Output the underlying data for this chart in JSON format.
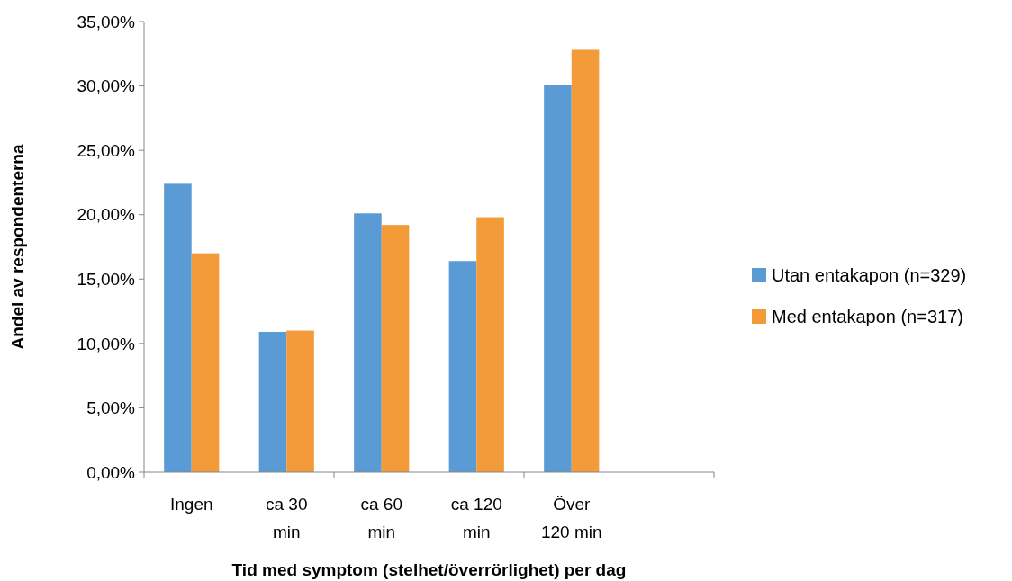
{
  "chart_data": {
    "type": "bar",
    "xlabel": "Tid med symptom (stelhet/överrörlighet) per dag",
    "ylabel": "Andel av respondenterna",
    "categories": [
      "Ingen",
      "ca 30 min",
      "ca 60 min",
      "ca 120 min",
      "Över 120 min",
      null
    ],
    "series": [
      {
        "name": "Utan entakapon (n=329)",
        "color": "#5b9bd5",
        "values": [
          22.4,
          10.9,
          20.1,
          16.4,
          30.1,
          null
        ]
      },
      {
        "name": "Med entakapon (n=317)",
        "color": "#f29b38",
        "values": [
          17.0,
          11.0,
          19.2,
          19.8,
          32.8,
          null
        ]
      }
    ],
    "ylim": [
      0,
      35
    ],
    "yticks": [
      {
        "value": 0,
        "label": "0,00%"
      },
      {
        "value": 5,
        "label": "5,00%"
      },
      {
        "value": 10,
        "label": "10,00%"
      },
      {
        "value": 15,
        "label": "15,00%"
      },
      {
        "value": 20,
        "label": "20,00%"
      },
      {
        "value": 25,
        "label": "25,00%"
      },
      {
        "value": 30,
        "label": "30,00%"
      },
      {
        "value": 35,
        "label": "35,00%"
      }
    ],
    "grid": false,
    "legend": "right"
  }
}
